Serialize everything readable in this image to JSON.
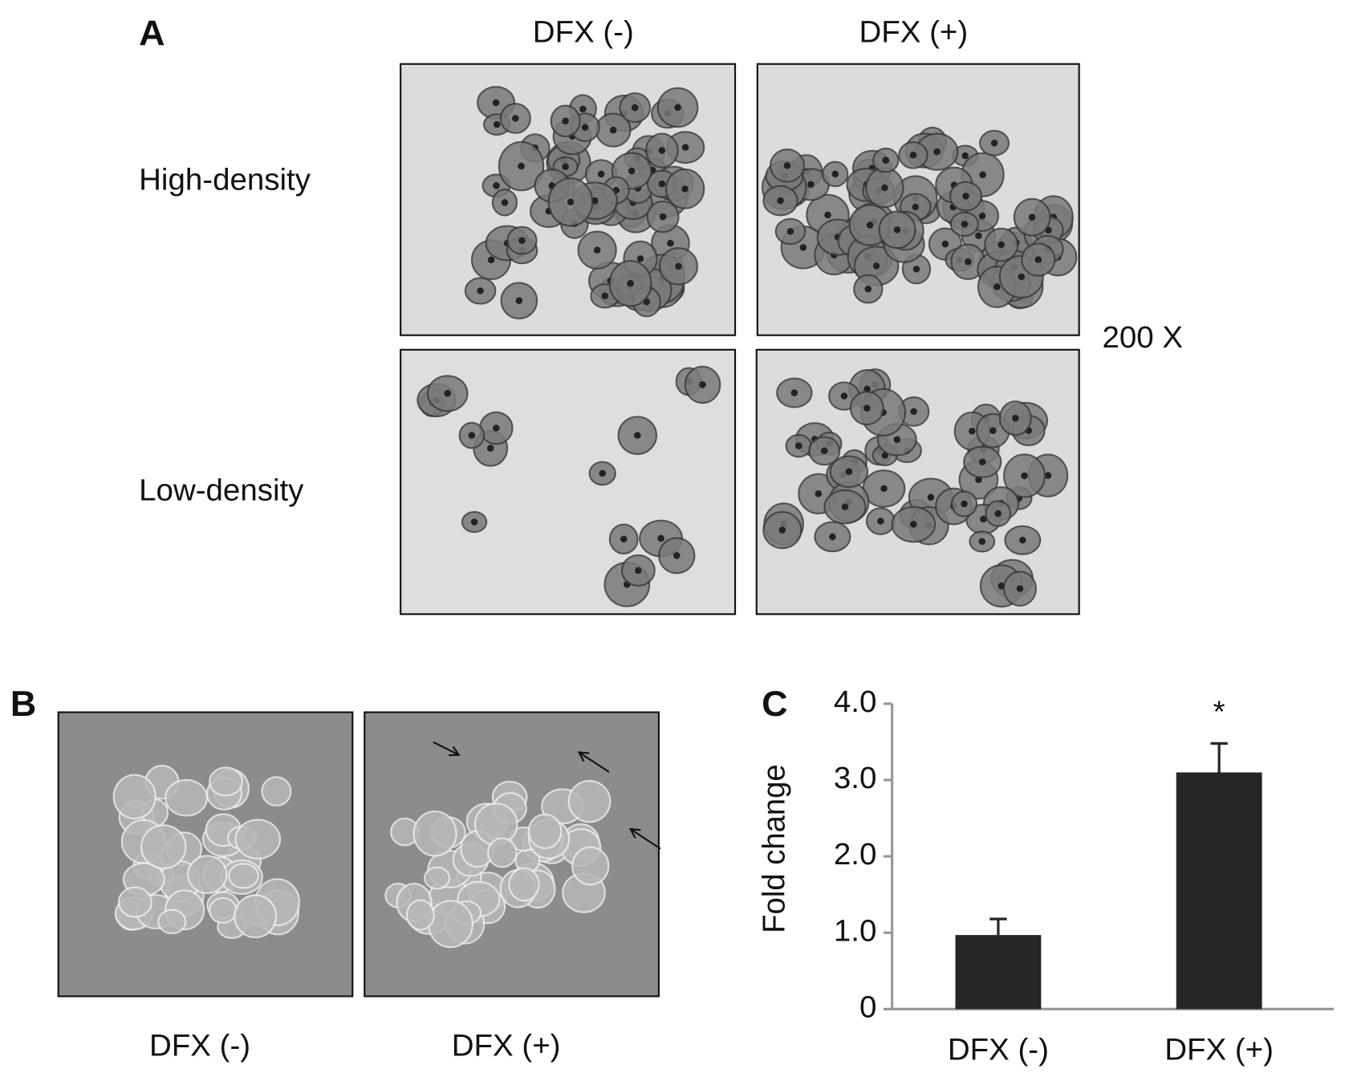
{
  "panel_a": {
    "label": "A",
    "columns": [
      "DFX (-)",
      "DFX (+)"
    ],
    "rows": [
      "High-density",
      "Low-density"
    ],
    "magnification": "200 X"
  },
  "panel_b": {
    "label": "B",
    "captions": [
      "DFX (-)",
      "DFX (+)"
    ]
  },
  "chart_data": {
    "type": "bar",
    "panel_label": "C",
    "y_label": "Fold change",
    "categories": [
      "DFX (-)",
      "DFX (+)"
    ],
    "values": [
      0.97,
      3.1
    ],
    "errors": [
      0.21,
      0.38
    ],
    "annotations": [
      null,
      "*"
    ],
    "color": "#262626",
    "ylim": [
      0,
      4
    ],
    "yticks": [
      0,
      {
        "value": 1,
        "label": "1.0"
      },
      {
        "value": 2,
        "label": "2.0"
      },
      {
        "value": 3,
        "label": "3.0"
      },
      {
        "value": 4,
        "label": "4.0"
      }
    ]
  }
}
